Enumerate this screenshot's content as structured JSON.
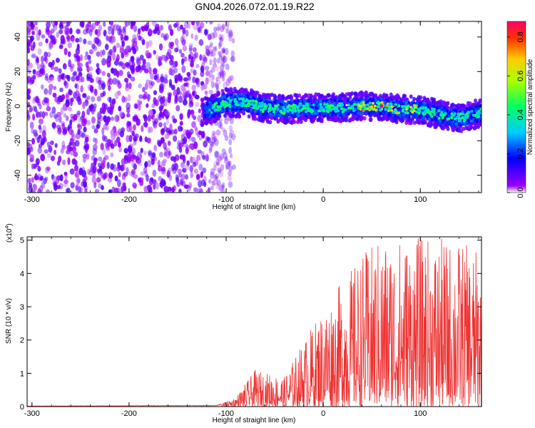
{
  "title": "GN04.2026.072.01.19.R22",
  "chart_data": [
    {
      "type": "heatmap",
      "xlabel": "Height of straight line (km)",
      "ylabel": "Frequency (Hz)",
      "xlim": [
        -305,
        163
      ],
      "ylim": [
        -50,
        49
      ],
      "xticks": [
        "-300",
        "-200",
        "-100",
        "0",
        "100"
      ],
      "yticks": [
        "40",
        "20",
        "0",
        "-20",
        "-40"
      ],
      "colorbar": {
        "label": "Normalized spectral amplitude",
        "ticks": [
          "0.0",
          "0.2",
          "0.4",
          "0.6",
          "0.8"
        ],
        "range": [
          0,
          0.88
        ]
      },
      "noise_region_x": [
        -305,
        -117
      ],
      "signal_track": [
        {
          "x": -120,
          "y": -3
        },
        {
          "x": -100,
          "y": 2
        },
        {
          "x": -80,
          "y": 2
        },
        {
          "x": -60,
          "y": -1
        },
        {
          "x": -40,
          "y": -2
        },
        {
          "x": -20,
          "y": -1
        },
        {
          "x": 0,
          "y": -1
        },
        {
          "x": 20,
          "y": -1
        },
        {
          "x": 40,
          "y": 0
        },
        {
          "x": 60,
          "y": 0
        },
        {
          "x": 80,
          "y": -2
        },
        {
          "x": 100,
          "y": -2
        },
        {
          "x": 120,
          "y": -5
        },
        {
          "x": 140,
          "y": -7
        },
        {
          "x": 163,
          "y": -4
        }
      ],
      "peak_amplitude": {
        "x": 60,
        "y": 0,
        "value": 0.88
      }
    },
    {
      "type": "line",
      "xlabel": "Height of straight line (km)",
      "ylabel": "SNR (10 * v/v)",
      "multiplier": "(x10",
      "multiplier_exp": "4",
      "multiplier_close": ")",
      "xlim": [
        -305,
        163
      ],
      "ylim": [
        0,
        5.1
      ],
      "xticks": [
        "-300",
        "-200",
        "-100",
        "0",
        "100"
      ],
      "yticks": [
        "0",
        "1",
        "2",
        "3",
        "4",
        "5"
      ],
      "series_color": "#ee3333",
      "envelope": [
        {
          "x": -305,
          "y": 0.02
        },
        {
          "x": -110,
          "y": 0.04
        },
        {
          "x": -100,
          "y": 0.15
        },
        {
          "x": -90,
          "y": 0.3
        },
        {
          "x": -70,
          "y": 1.1
        },
        {
          "x": -40,
          "y": 0.9
        },
        {
          "x": -20,
          "y": 2.0
        },
        {
          "x": 0,
          "y": 3.0
        },
        {
          "x": 20,
          "y": 3.8
        },
        {
          "x": 40,
          "y": 4.6
        },
        {
          "x": 60,
          "y": 5.1
        },
        {
          "x": 100,
          "y": 5.1
        },
        {
          "x": 140,
          "y": 5.0
        },
        {
          "x": 163,
          "y": 4.6
        }
      ]
    }
  ]
}
